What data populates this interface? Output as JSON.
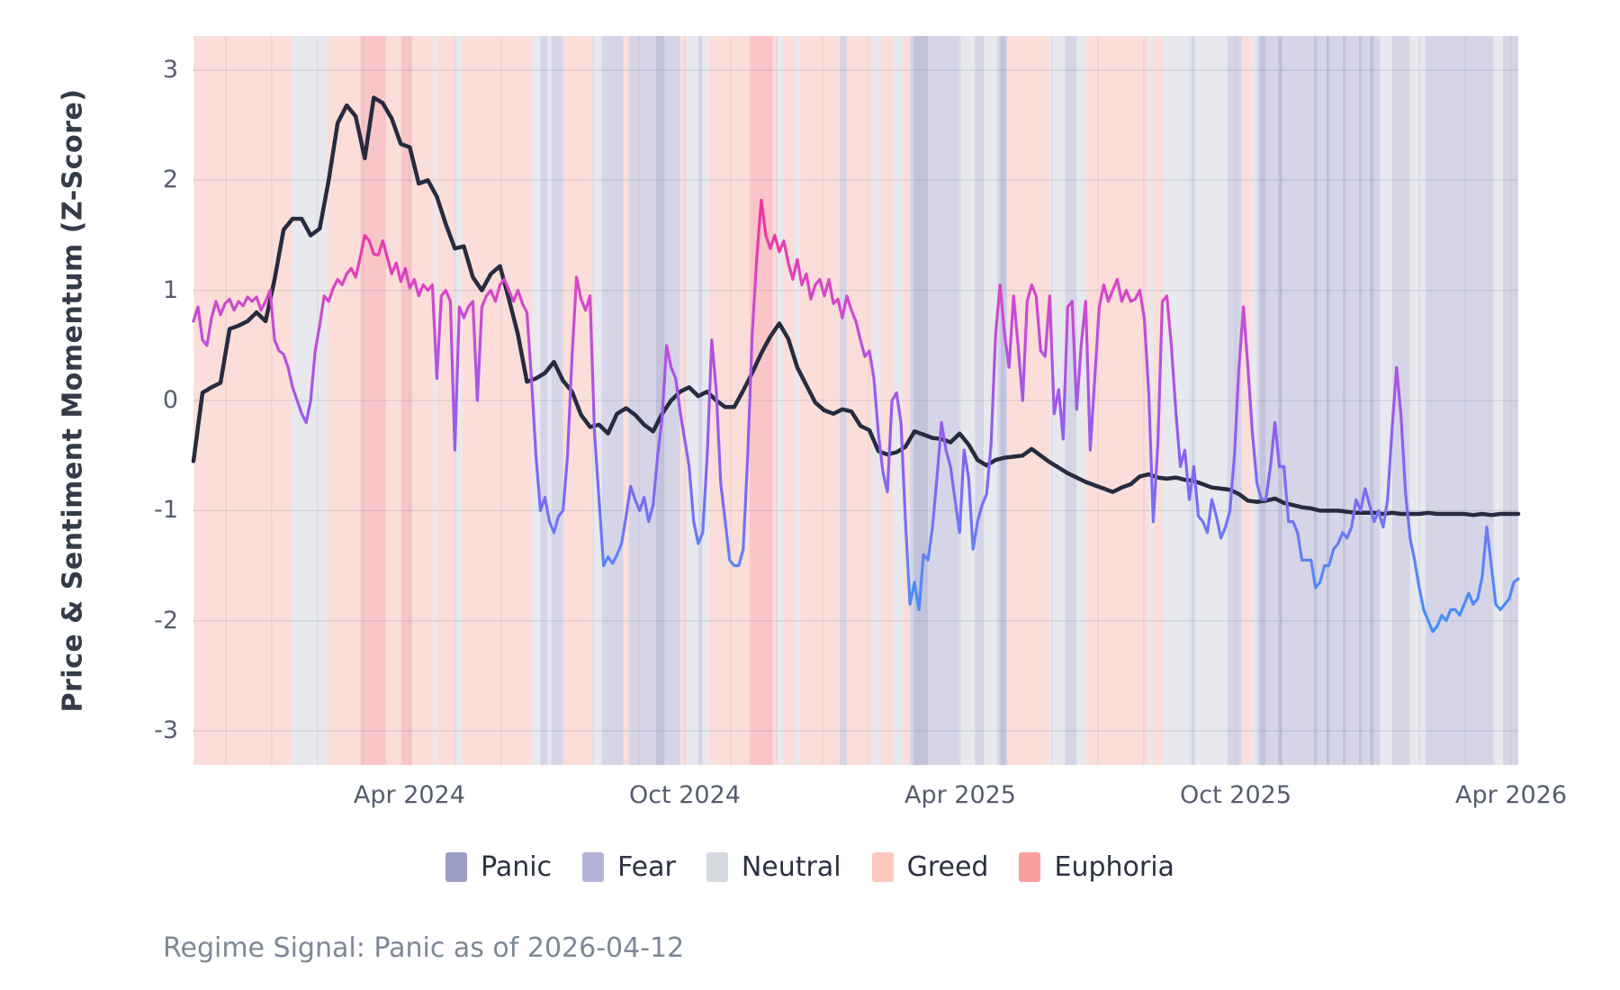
{
  "figure": {
    "footer": "Regime Signal: Panic as of 2026-04-12"
  },
  "chart_data": {
    "type": "line",
    "title": "",
    "xlabel": "",
    "ylabel": "Price & Sentiment Momentum (Z-Score)",
    "ylim": [
      -3.31,
      3.31
    ],
    "grid": true,
    "legend_position": "bottom",
    "y_ticks": [
      3,
      2,
      1,
      0,
      -1,
      -2,
      -3
    ],
    "x_ticks": [
      {
        "label": "Apr 2024",
        "t": 0.163
      },
      {
        "label": "Oct 2024",
        "t": 0.3709
      },
      {
        "label": "Apr 2025",
        "t": 0.5788
      },
      {
        "label": "Oct 2025",
        "t": 0.7867
      },
      {
        "label": "Apr 2026",
        "t": 0.9946
      }
    ],
    "month_grid": {
      "start_t": 0.0244,
      "step_t": 0.03465,
      "count": 29
    },
    "series": [
      {
        "name": "price-momentum",
        "color": "#272b3f",
        "stroke_width": 4.5,
        "t_start": 0,
        "t_end": 1,
        "values": [
          -0.55,
          0.07,
          0.12,
          0.16,
          0.65,
          0.68,
          0.72,
          0.8,
          0.72,
          1.1,
          1.55,
          1.65,
          1.65,
          1.5,
          1.56,
          2.0,
          2.52,
          2.68,
          2.58,
          2.2,
          2.75,
          2.7,
          2.56,
          2.33,
          2.3,
          1.97,
          2.0,
          1.85,
          1.6,
          1.38,
          1.4,
          1.12,
          1.0,
          1.15,
          1.22,
          0.92,
          0.6,
          0.17,
          0.2,
          0.25,
          0.35,
          0.18,
          0.08,
          -0.13,
          -0.24,
          -0.22,
          -0.3,
          -0.12,
          -0.07,
          -0.13,
          -0.22,
          -0.28,
          -0.12,
          0.0,
          0.08,
          0.12,
          0.04,
          0.08,
          0.0,
          -0.06,
          -0.06,
          0.09,
          0.25,
          0.43,
          0.58,
          0.7,
          0.56,
          0.3,
          0.14,
          -0.02,
          -0.09,
          -0.12,
          -0.08,
          -0.1,
          -0.23,
          -0.27,
          -0.46,
          -0.49,
          -0.47,
          -0.42,
          -0.28,
          -0.31,
          -0.34,
          -0.35,
          -0.38,
          -0.3,
          -0.4,
          -0.54,
          -0.59,
          -0.54,
          -0.52,
          -0.51,
          -0.5,
          -0.44,
          -0.5,
          -0.56,
          -0.61,
          -0.66,
          -0.7,
          -0.74,
          -0.77,
          -0.8,
          -0.83,
          -0.79,
          -0.76,
          -0.69,
          -0.67,
          -0.7,
          -0.71,
          -0.7,
          -0.72,
          -0.73,
          -0.76,
          -0.79,
          -0.8,
          -0.81,
          -0.85,
          -0.91,
          -0.92,
          -0.91,
          -0.89,
          -0.93,
          -0.95,
          -0.97,
          -0.98,
          -1.0,
          -1.0,
          -1.0,
          -1.01,
          -1.02,
          -1.02,
          -1.02,
          -1.03,
          -1.02,
          -1.03,
          -1.03,
          -1.03,
          -1.02,
          -1.03,
          -1.03,
          -1.03,
          -1.03,
          -1.04,
          -1.03,
          -1.04,
          -1.03,
          -1.03,
          -1.03
        ]
      },
      {
        "name": "sentiment-momentum",
        "stroke_width": 3.2,
        "gradient_by_value": [
          [
            2.0,
            "#f5308c"
          ],
          [
            1.5,
            "#e93aa6"
          ],
          [
            1.0,
            "#d846c8"
          ],
          [
            0.5,
            "#ba50dc"
          ],
          [
            0.0,
            "#a158e8"
          ],
          [
            -0.5,
            "#8a62f0"
          ],
          [
            -1.0,
            "#7570f4"
          ],
          [
            -1.5,
            "#5b86f6"
          ],
          [
            -2.1,
            "#3f90fa"
          ]
        ],
        "t_start": 0,
        "t_end": 1,
        "values": [
          0.72,
          0.85,
          0.55,
          0.5,
          0.75,
          0.9,
          0.78,
          0.88,
          0.92,
          0.82,
          0.9,
          0.86,
          0.94,
          0.9,
          0.94,
          0.82,
          0.9,
          1.0,
          0.55,
          0.45,
          0.42,
          0.3,
          0.12,
          0.0,
          -0.12,
          -0.2,
          0.0,
          0.45,
          0.68,
          0.95,
          0.9,
          1.02,
          1.1,
          1.05,
          1.15,
          1.2,
          1.12,
          1.3,
          1.5,
          1.45,
          1.33,
          1.32,
          1.45,
          1.3,
          1.15,
          1.25,
          1.08,
          1.2,
          1.02,
          1.1,
          0.95,
          1.05,
          1.0,
          1.05,
          0.2,
          0.95,
          1.0,
          0.9,
          -0.45,
          0.85,
          0.75,
          0.85,
          0.9,
          0.0,
          0.85,
          0.95,
          1.0,
          0.9,
          1.05,
          1.1,
          1.0,
          0.9,
          1.0,
          0.88,
          0.8,
          0.2,
          -0.5,
          -1.0,
          -0.88,
          -1.1,
          -1.2,
          -1.05,
          -1.0,
          -0.5,
          0.4,
          1.12,
          0.92,
          0.82,
          0.95,
          -0.3,
          -0.9,
          -1.5,
          -1.42,
          -1.48,
          -1.4,
          -1.3,
          -1.05,
          -0.78,
          -0.9,
          -1.0,
          -0.88,
          -1.1,
          -0.95,
          -0.5,
          -0.15,
          0.5,
          0.3,
          0.2,
          -0.1,
          -0.35,
          -0.6,
          -1.1,
          -1.3,
          -1.2,
          -0.5,
          0.55,
          0.1,
          -0.75,
          -1.1,
          -1.45,
          -1.5,
          -1.5,
          -1.35,
          -0.5,
          0.6,
          1.3,
          1.82,
          1.5,
          1.38,
          1.5,
          1.35,
          1.45,
          1.25,
          1.1,
          1.28,
          1.05,
          1.15,
          0.92,
          1.05,
          1.1,
          0.95,
          1.1,
          0.88,
          0.92,
          0.75,
          0.95,
          0.82,
          0.72,
          0.55,
          0.4,
          0.45,
          0.2,
          -0.3,
          -0.65,
          -0.83,
          0.0,
          0.07,
          -0.2,
          -1.1,
          -1.85,
          -1.65,
          -1.9,
          -1.4,
          -1.45,
          -1.15,
          -0.7,
          -0.2,
          -0.45,
          -0.6,
          -0.9,
          -1.2,
          -0.45,
          -0.7,
          -1.35,
          -1.1,
          -0.95,
          -0.85,
          -0.4,
          0.6,
          1.05,
          0.6,
          0.3,
          0.95,
          0.5,
          0.0,
          0.9,
          1.05,
          0.95,
          0.45,
          0.4,
          0.95,
          -0.12,
          0.1,
          -0.35,
          0.85,
          0.9,
          -0.08,
          0.5,
          0.9,
          -0.45,
          0.2,
          0.85,
          1.05,
          0.9,
          1.0,
          1.1,
          0.9,
          1.0,
          0.9,
          0.92,
          1.0,
          0.75,
          0.07,
          -1.1,
          -0.4,
          0.9,
          0.95,
          0.5,
          -0.1,
          -0.6,
          -0.45,
          -0.9,
          -0.6,
          -1.05,
          -1.1,
          -1.2,
          -0.9,
          -1.05,
          -1.25,
          -1.15,
          -1.0,
          -0.5,
          0.3,
          0.85,
          0.3,
          -0.3,
          -0.75,
          -0.9,
          -0.9,
          -0.6,
          -0.2,
          -0.6,
          -0.6,
          -1.1,
          -1.1,
          -1.2,
          -1.45,
          -1.45,
          -1.45,
          -1.7,
          -1.65,
          -1.5,
          -1.5,
          -1.35,
          -1.3,
          -1.2,
          -1.25,
          -1.15,
          -0.9,
          -1.0,
          -0.8,
          -0.95,
          -1.1,
          -1.0,
          -1.15,
          -0.9,
          -0.25,
          0.3,
          -0.15,
          -0.85,
          -1.25,
          -1.45,
          -1.7,
          -1.9,
          -2.0,
          -2.1,
          -2.05,
          -1.95,
          -2.0,
          -1.9,
          -1.9,
          -1.95,
          -1.85,
          -1.75,
          -1.85,
          -1.8,
          -1.6,
          -1.15,
          -1.5,
          -1.85,
          -1.9,
          -1.85,
          -1.8,
          -1.65,
          -1.62
        ]
      }
    ],
    "regimes": {
      "legend": [
        "Panic",
        "Fear",
        "Neutral",
        "Greed",
        "Euphoria"
      ],
      "legend_colors": {
        "Panic": "#9d9dca",
        "Fear": "#b4b4d8",
        "Neutral": "#d5d9e0",
        "Greed": "#fec9bd",
        "Euphoria": "#f99f9f"
      },
      "band_colors": {
        "Panic": "#c2c2db",
        "Fear": "#d5d5e7",
        "Neutral": "#e7e9ee",
        "Greed": "#fbded9",
        "Euphoria": "#f8c6c9"
      },
      "bands": [
        [
          0,
          0.0741,
          "Greed"
        ],
        [
          0.0741,
          0.1007,
          "Neutral"
        ],
        [
          0.1007,
          0.1259,
          "Greed"
        ],
        [
          0.1259,
          0.1456,
          "Euphoria"
        ],
        [
          0.1456,
          0.1565,
          "Greed"
        ],
        [
          0.1565,
          0.1653,
          "Euphoria"
        ],
        [
          0.1653,
          0.181,
          "Greed"
        ],
        [
          0.181,
          0.1837,
          "Neutral"
        ],
        [
          0.1837,
          0.1973,
          "Greed"
        ],
        [
          0.1973,
          0.2027,
          "Neutral"
        ],
        [
          0.2027,
          0.2551,
          "Greed"
        ],
        [
          0.2551,
          0.2619,
          "Neutral"
        ],
        [
          0.2619,
          0.2667,
          "Fear"
        ],
        [
          0.2667,
          0.2701,
          "Neutral"
        ],
        [
          0.2701,
          0.2789,
          "Fear"
        ],
        [
          0.2789,
          0.3014,
          "Greed"
        ],
        [
          0.3014,
          0.3082,
          "Neutral"
        ],
        [
          0.3082,
          0.3245,
          "Fear"
        ],
        [
          0.3245,
          0.3286,
          "Greed"
        ],
        [
          0.3286,
          0.349,
          "Fear"
        ],
        [
          0.349,
          0.3558,
          "Panic"
        ],
        [
          0.3558,
          0.3673,
          "Fear"
        ],
        [
          0.3673,
          0.3721,
          "Greed"
        ],
        [
          0.3721,
          0.381,
          "Neutral"
        ],
        [
          0.381,
          0.3844,
          "Fear"
        ],
        [
          0.3844,
          0.3891,
          "Neutral"
        ],
        [
          0.3891,
          0.4197,
          "Greed"
        ],
        [
          0.4197,
          0.4374,
          "Euphoria"
        ],
        [
          0.4374,
          0.4408,
          "Greed"
        ],
        [
          0.4408,
          0.4456,
          "Neutral"
        ],
        [
          0.4456,
          0.4537,
          "Greed"
        ],
        [
          0.4537,
          0.4578,
          "Neutral"
        ],
        [
          0.4578,
          0.4878,
          "Greed"
        ],
        [
          0.4878,
          0.4932,
          "Fear"
        ],
        [
          0.4932,
          0.5122,
          "Greed"
        ],
        [
          0.5122,
          0.519,
          "Neutral"
        ],
        [
          0.519,
          0.5286,
          "Greed"
        ],
        [
          0.5286,
          0.5354,
          "Neutral"
        ],
        [
          0.5354,
          0.5408,
          "Greed"
        ],
        [
          0.5408,
          0.5442,
          "Fear"
        ],
        [
          0.5442,
          0.5544,
          "Panic"
        ],
        [
          0.5544,
          0.5782,
          "Fear"
        ],
        [
          0.5782,
          0.5898,
          "Neutral"
        ],
        [
          0.5898,
          0.5966,
          "Fear"
        ],
        [
          0.5966,
          0.6068,
          "Neutral"
        ],
        [
          0.6068,
          0.6088,
          "Fear"
        ],
        [
          0.6088,
          0.6129,
          "Panic"
        ],
        [
          0.6129,
          0.6143,
          "Fear"
        ],
        [
          0.6143,
          0.6463,
          "Greed"
        ],
        [
          0.6463,
          0.6578,
          "Neutral"
        ],
        [
          0.6578,
          0.6667,
          "Fear"
        ],
        [
          0.6667,
          0.6735,
          "Neutral"
        ],
        [
          0.6735,
          0.7211,
          "Greed"
        ],
        [
          0.7211,
          0.7245,
          "Neutral"
        ],
        [
          0.7245,
          0.7313,
          "Greed"
        ],
        [
          0.7313,
          0.7531,
          "Neutral"
        ],
        [
          0.7531,
          0.7558,
          "Fear"
        ],
        [
          0.7558,
          0.7803,
          "Neutral"
        ],
        [
          0.7803,
          0.7912,
          "Fear"
        ],
        [
          0.7912,
          0.798,
          "Greed"
        ],
        [
          0.798,
          0.8027,
          "Neutral"
        ],
        [
          0.8027,
          0.8048,
          "Fear"
        ],
        [
          0.8048,
          0.8095,
          "Panic"
        ],
        [
          0.8095,
          0.8184,
          "Fear"
        ],
        [
          0.8184,
          0.8218,
          "Panic"
        ],
        [
          0.8218,
          0.8456,
          "Fear"
        ],
        [
          0.8456,
          0.8483,
          "Panic"
        ],
        [
          0.8483,
          0.8551,
          "Fear"
        ],
        [
          0.8551,
          0.8578,
          "Panic"
        ],
        [
          0.8578,
          0.8673,
          "Fear"
        ],
        [
          0.8673,
          0.8701,
          "Panic"
        ],
        [
          0.8701,
          0.8796,
          "Fear"
        ],
        [
          0.8796,
          0.8823,
          "Panic"
        ],
        [
          0.8823,
          0.8878,
          "Fear"
        ],
        [
          0.8878,
          0.8905,
          "Panic"
        ],
        [
          0.8905,
          0.8959,
          "Fear"
        ],
        [
          0.8959,
          0.9048,
          "Neutral"
        ],
        [
          0.9048,
          0.9184,
          "Fear"
        ],
        [
          0.9184,
          0.9299,
          "Neutral"
        ],
        [
          0.9299,
          0.9816,
          "Fear"
        ],
        [
          0.9816,
          0.9884,
          "Neutral"
        ],
        [
          0.9884,
          1.0,
          "Fear"
        ]
      ]
    }
  }
}
